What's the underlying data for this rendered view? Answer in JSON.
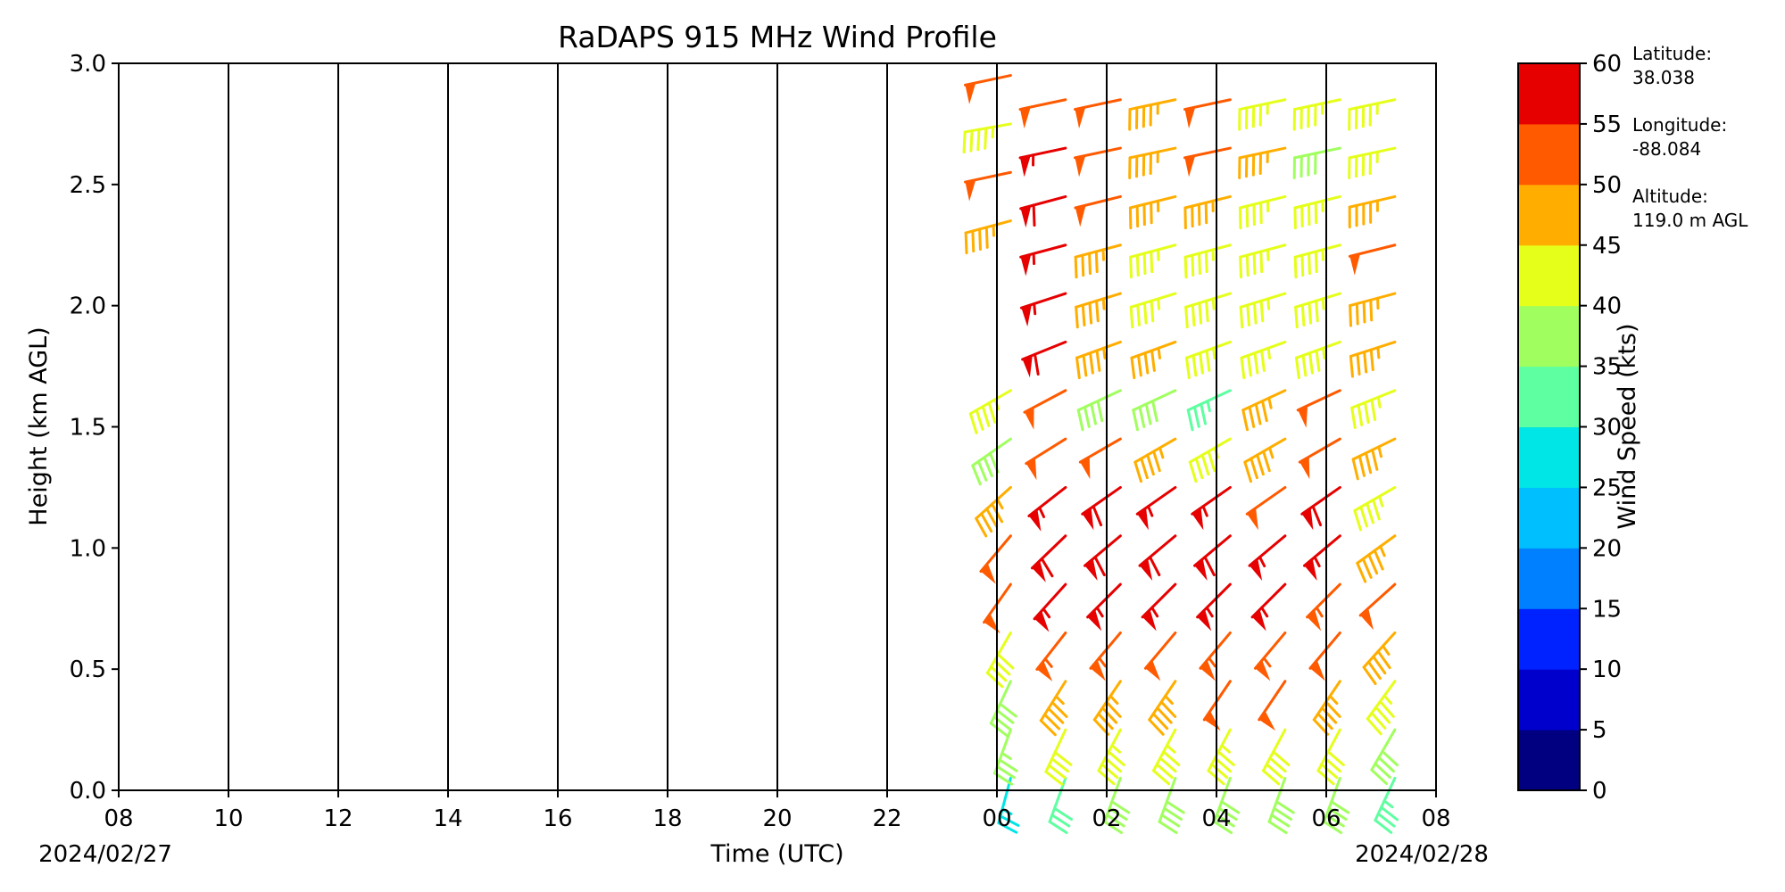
{
  "chart_data": {
    "type": "wind_barbs",
    "title": "RaDAPS 915 MHz Wind Profile",
    "xlabel": "Time (UTC)",
    "ylabel": "Height (km AGL)",
    "xticks": [
      "08",
      "10",
      "12",
      "14",
      "16",
      "18",
      "20",
      "22",
      "00",
      "02",
      "04",
      "06",
      "08"
    ],
    "xlim": [
      "2024-02-27T08:00Z",
      "2024-02-28T08:00Z"
    ],
    "date_start": "2024/02/27",
    "date_end": "2024/02/28",
    "ylim": [
      0,
      3.0
    ],
    "yticks": [
      "0.0",
      "0.5",
      "1.0",
      "1.5",
      "2.0",
      "2.5",
      "3.0"
    ],
    "vertical_gridlines": [
      "10",
      "12",
      "14",
      "16",
      "18",
      "20",
      "22",
      "00",
      "02",
      "04",
      "06"
    ],
    "colorbar": {
      "label": "Wind Speed (kts)",
      "bounds": [
        0,
        5,
        10,
        15,
        20,
        25,
        30,
        35,
        40,
        45,
        50,
        55,
        60
      ],
      "tick_labels": [
        "0",
        "5",
        "10",
        "15",
        "20",
        "25",
        "30",
        "35",
        "40",
        "45",
        "50",
        "55",
        "60"
      ],
      "colors": [
        "#000080",
        "#0000cd",
        "#0022ff",
        "#0080ff",
        "#00bfff",
        "#00e5e5",
        "#5effa0",
        "#a0ff5e",
        "#e5ff1a",
        "#ffae00",
        "#ff5a00",
        "#e60000",
        "#800000"
      ]
    },
    "site_info": {
      "latitude_label": "Latitude:",
      "latitude": "38.038",
      "longitude_label": "Longitude:",
      "longitude": "-88.084",
      "altitude_label": "Altitude:",
      "altitude": "119.0 m AGL"
    },
    "barb_units": "kts",
    "profiles": [
      {
        "time": "00:15",
        "barbs": [
          {
            "h": 0.05,
            "spd": 27,
            "dir": 195
          },
          {
            "h": 0.25,
            "spd": 35,
            "dir": 200
          },
          {
            "h": 0.45,
            "spd": 38,
            "dir": 205
          },
          {
            "h": 0.65,
            "spd": 42,
            "dir": 210
          },
          {
            "h": 0.85,
            "spd": 50,
            "dir": 215
          },
          {
            "h": 1.05,
            "spd": 52,
            "dir": 220
          },
          {
            "h": 1.25,
            "spd": 45,
            "dir": 228
          },
          {
            "h": 1.45,
            "spd": 38,
            "dir": 235
          },
          {
            "h": 1.65,
            "spd": 43,
            "dir": 240
          },
          {
            "h": 2.35,
            "spd": 47,
            "dir": 255
          },
          {
            "h": 2.55,
            "spd": 50,
            "dir": 258
          },
          {
            "h": 2.75,
            "spd": 43,
            "dir": 260
          },
          {
            "h": 2.95,
            "spd": 52,
            "dir": 258
          }
        ]
      },
      {
        "time": "01:15",
        "barbs": [
          {
            "h": 0.05,
            "spd": 32,
            "dir": 200
          },
          {
            "h": 0.25,
            "spd": 40,
            "dir": 205
          },
          {
            "h": 0.45,
            "spd": 47,
            "dir": 212
          },
          {
            "h": 0.65,
            "spd": 53,
            "dir": 218
          },
          {
            "h": 0.85,
            "spd": 57,
            "dir": 222
          },
          {
            "h": 1.05,
            "spd": 58,
            "dir": 226
          },
          {
            "h": 1.25,
            "spd": 57,
            "dir": 232
          },
          {
            "h": 1.45,
            "spd": 52,
            "dir": 238
          },
          {
            "h": 1.65,
            "spd": 52,
            "dir": 242
          },
          {
            "h": 1.85,
            "spd": 58,
            "dir": 248
          },
          {
            "h": 2.05,
            "spd": 57,
            "dir": 252
          },
          {
            "h": 2.25,
            "spd": 57,
            "dir": 255
          },
          {
            "h": 2.45,
            "spd": 58,
            "dir": 255
          },
          {
            "h": 2.65,
            "spd": 57,
            "dir": 258
          },
          {
            "h": 2.85,
            "spd": 52,
            "dir": 258
          }
        ]
      },
      {
        "time": "02:15",
        "barbs": [
          {
            "h": 0.05,
            "spd": 38,
            "dir": 200
          },
          {
            "h": 0.25,
            "spd": 43,
            "dir": 208
          },
          {
            "h": 0.45,
            "spd": 47,
            "dir": 214
          },
          {
            "h": 0.65,
            "spd": 53,
            "dir": 220
          },
          {
            "h": 0.85,
            "spd": 57,
            "dir": 225
          },
          {
            "h": 1.05,
            "spd": 58,
            "dir": 230
          },
          {
            "h": 1.25,
            "spd": 58,
            "dir": 235
          },
          {
            "h": 1.45,
            "spd": 52,
            "dir": 240
          },
          {
            "h": 1.65,
            "spd": 38,
            "dir": 245
          },
          {
            "h": 1.85,
            "spd": 47,
            "dir": 250
          },
          {
            "h": 2.05,
            "spd": 47,
            "dir": 253
          },
          {
            "h": 2.25,
            "spd": 47,
            "dir": 255
          },
          {
            "h": 2.45,
            "spd": 52,
            "dir": 256
          },
          {
            "h": 2.65,
            "spd": 52,
            "dir": 258
          },
          {
            "h": 2.85,
            "spd": 52,
            "dir": 258
          }
        ]
      },
      {
        "time": "03:15",
        "barbs": [
          {
            "h": 0.05,
            "spd": 38,
            "dir": 200
          },
          {
            "h": 0.25,
            "spd": 43,
            "dir": 208
          },
          {
            "h": 0.45,
            "spd": 47,
            "dir": 214
          },
          {
            "h": 0.65,
            "spd": 52,
            "dir": 220
          },
          {
            "h": 0.85,
            "spd": 57,
            "dir": 225
          },
          {
            "h": 1.05,
            "spd": 58,
            "dir": 230
          },
          {
            "h": 1.25,
            "spd": 57,
            "dir": 235
          },
          {
            "h": 1.45,
            "spd": 47,
            "dir": 240
          },
          {
            "h": 1.65,
            "spd": 38,
            "dir": 245
          },
          {
            "h": 1.85,
            "spd": 47,
            "dir": 250
          },
          {
            "h": 2.05,
            "spd": 43,
            "dir": 253
          },
          {
            "h": 2.25,
            "spd": 43,
            "dir": 255
          },
          {
            "h": 2.45,
            "spd": 47,
            "dir": 256
          },
          {
            "h": 2.65,
            "spd": 47,
            "dir": 258
          },
          {
            "h": 2.85,
            "spd": 47,
            "dir": 258
          }
        ]
      },
      {
        "time": "04:15",
        "barbs": [
          {
            "h": 0.05,
            "spd": 38,
            "dir": 200
          },
          {
            "h": 0.25,
            "spd": 43,
            "dir": 208
          },
          {
            "h": 0.45,
            "spd": 50,
            "dir": 214
          },
          {
            "h": 0.65,
            "spd": 53,
            "dir": 220
          },
          {
            "h": 0.85,
            "spd": 57,
            "dir": 225
          },
          {
            "h": 1.05,
            "spd": 58,
            "dir": 230
          },
          {
            "h": 1.25,
            "spd": 57,
            "dir": 235
          },
          {
            "h": 1.45,
            "spd": 43,
            "dir": 240
          },
          {
            "h": 1.65,
            "spd": 33,
            "dir": 245
          },
          {
            "h": 1.85,
            "spd": 43,
            "dir": 250
          },
          {
            "h": 2.05,
            "spd": 43,
            "dir": 253
          },
          {
            "h": 2.25,
            "spd": 43,
            "dir": 255
          },
          {
            "h": 2.45,
            "spd": 47,
            "dir": 256
          },
          {
            "h": 2.65,
            "spd": 52,
            "dir": 258
          },
          {
            "h": 2.85,
            "spd": 52,
            "dir": 258
          }
        ]
      },
      {
        "time": "05:15",
        "barbs": [
          {
            "h": 0.05,
            "spd": 38,
            "dir": 200
          },
          {
            "h": 0.25,
            "spd": 42,
            "dir": 208
          },
          {
            "h": 0.45,
            "spd": 50,
            "dir": 214
          },
          {
            "h": 0.65,
            "spd": 53,
            "dir": 220
          },
          {
            "h": 0.85,
            "spd": 57,
            "dir": 225
          },
          {
            "h": 1.05,
            "spd": 57,
            "dir": 230
          },
          {
            "h": 1.25,
            "spd": 52,
            "dir": 235
          },
          {
            "h": 1.45,
            "spd": 47,
            "dir": 240
          },
          {
            "h": 1.65,
            "spd": 47,
            "dir": 245
          },
          {
            "h": 1.85,
            "spd": 43,
            "dir": 250
          },
          {
            "h": 2.05,
            "spd": 43,
            "dir": 253
          },
          {
            "h": 2.25,
            "spd": 43,
            "dir": 255
          },
          {
            "h": 2.45,
            "spd": 43,
            "dir": 256
          },
          {
            "h": 2.65,
            "spd": 47,
            "dir": 258
          },
          {
            "h": 2.85,
            "spd": 43,
            "dir": 258
          }
        ]
      },
      {
        "time": "06:15",
        "barbs": [
          {
            "h": 0.05,
            "spd": 38,
            "dir": 200
          },
          {
            "h": 0.25,
            "spd": 40,
            "dir": 208
          },
          {
            "h": 0.45,
            "spd": 45,
            "dir": 214
          },
          {
            "h": 0.65,
            "spd": 50,
            "dir": 220
          },
          {
            "h": 0.85,
            "spd": 53,
            "dir": 225
          },
          {
            "h": 1.05,
            "spd": 57,
            "dir": 230
          },
          {
            "h": 1.25,
            "spd": 58,
            "dir": 235
          },
          {
            "h": 1.45,
            "spd": 52,
            "dir": 240
          },
          {
            "h": 1.65,
            "spd": 52,
            "dir": 245
          },
          {
            "h": 1.85,
            "spd": 43,
            "dir": 250
          },
          {
            "h": 2.05,
            "spd": 43,
            "dir": 253
          },
          {
            "h": 2.25,
            "spd": 43,
            "dir": 255
          },
          {
            "h": 2.45,
            "spd": 43,
            "dir": 256
          },
          {
            "h": 2.65,
            "spd": 38,
            "dir": 258
          },
          {
            "h": 2.85,
            "spd": 43,
            "dir": 258
          }
        ]
      },
      {
        "time": "07:15",
        "barbs": [
          {
            "h": 0.05,
            "spd": 33,
            "dir": 205
          },
          {
            "h": 0.25,
            "spd": 38,
            "dir": 210
          },
          {
            "h": 0.45,
            "spd": 43,
            "dir": 216
          },
          {
            "h": 0.65,
            "spd": 47,
            "dir": 222
          },
          {
            "h": 0.85,
            "spd": 52,
            "dir": 228
          },
          {
            "h": 1.05,
            "spd": 47,
            "dir": 234
          },
          {
            "h": 1.25,
            "spd": 43,
            "dir": 240
          },
          {
            "h": 1.45,
            "spd": 47,
            "dir": 244
          },
          {
            "h": 1.65,
            "spd": 43,
            "dir": 248
          },
          {
            "h": 1.85,
            "spd": 47,
            "dir": 252
          },
          {
            "h": 2.05,
            "spd": 47,
            "dir": 255
          },
          {
            "h": 2.25,
            "spd": 52,
            "dir": 256
          },
          {
            "h": 2.45,
            "spd": 47,
            "dir": 257
          },
          {
            "h": 2.65,
            "spd": 43,
            "dir": 258
          },
          {
            "h": 2.85,
            "spd": 43,
            "dir": 258
          }
        ]
      }
    ]
  }
}
